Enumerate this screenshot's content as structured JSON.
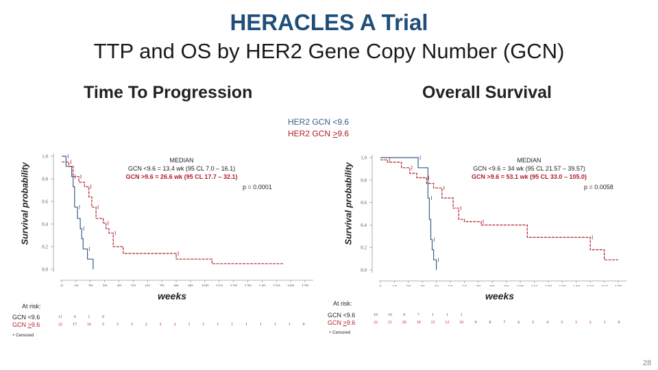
{
  "header": {
    "title": "HERACLES A Trial",
    "subtitle": "TTP and OS by HER2 Gene Copy Number (GCN)"
  },
  "legend": {
    "line1": "HER2 GCN <9.6",
    "line2_prefix": "HER2 GCN ",
    "line2_sym": ">",
    "line2_val": "9.6"
  },
  "page_number": "28",
  "colors": {
    "low": "#3b5a86",
    "high": "#b01c28",
    "title": "#1f4e79"
  },
  "chart_data": [
    {
      "type": "line",
      "step": true,
      "title": "Time To Progression",
      "xlabel": "weeks",
      "ylabel": "Survival probability",
      "xlim": [
        0,
        170
      ],
      "ylim": [
        0,
        1
      ],
      "xticks": [
        0,
        10,
        20,
        30,
        40,
        50,
        60,
        70,
        80,
        90,
        100,
        110,
        120,
        130,
        140,
        150,
        160,
        170
      ],
      "yticks": [
        "0.0",
        "0.2",
        "0.4",
        "0.6",
        "0.8",
        "1.0"
      ],
      "median_title": "MEDIAN",
      "median_low": "GCN <9.6 = 13.4 wk (95 CL 7.0 – 16.1)",
      "median_high": "GCN >9.6 = 26.6 wk (95 CL 17.7 – 32.1)",
      "pvalue": "p = 0.0001",
      "series": [
        {
          "name": "HER2 GCN <9.6",
          "points": [
            [
              0,
              1.0
            ],
            [
              3,
              1.0
            ],
            [
              3,
              0.91
            ],
            [
              7,
              0.91
            ],
            [
              7,
              0.82
            ],
            [
              8,
              0.82
            ],
            [
              8,
              0.73
            ],
            [
              9,
              0.73
            ],
            [
              9,
              0.55
            ],
            [
              11,
              0.55
            ],
            [
              11,
              0.45
            ],
            [
              13,
              0.45
            ],
            [
              13,
              0.36
            ],
            [
              14,
              0.36
            ],
            [
              14,
              0.27
            ],
            [
              15,
              0.27
            ],
            [
              15,
              0.18
            ],
            [
              18,
              0.18
            ],
            [
              18,
              0.09
            ],
            [
              22,
              0.09
            ],
            [
              22,
              0.0
            ]
          ]
        },
        {
          "name": "HER2 GCN >9.6",
          "points": [
            [
              0,
              0.95
            ],
            [
              5,
              0.95
            ],
            [
              5,
              0.91
            ],
            [
              8,
              0.91
            ],
            [
              8,
              0.82
            ],
            [
              12,
              0.82
            ],
            [
              12,
              0.77
            ],
            [
              16,
              0.77
            ],
            [
              16,
              0.73
            ],
            [
              19,
              0.73
            ],
            [
              19,
              0.64
            ],
            [
              21,
              0.64
            ],
            [
              21,
              0.55
            ],
            [
              24,
              0.55
            ],
            [
              24,
              0.45
            ],
            [
              29,
              0.45
            ],
            [
              29,
              0.41
            ],
            [
              31,
              0.41
            ],
            [
              31,
              0.36
            ],
            [
              33,
              0.36
            ],
            [
              33,
              0.32
            ],
            [
              36,
              0.32
            ],
            [
              36,
              0.2
            ],
            [
              43,
              0.2
            ],
            [
              43,
              0.14
            ],
            [
              80,
              0.14
            ],
            [
              80,
              0.09
            ],
            [
              105,
              0.09
            ],
            [
              105,
              0.05
            ],
            [
              155,
              0.05
            ]
          ]
        }
      ],
      "at_risk": {
        "label": "At risk:",
        "low_label": "GCN <9.6",
        "high_label_prefix": "GCN ",
        "high_label_sym": ">",
        "high_label_val": "9.6",
        "low_values": [
          "11",
          "4",
          "1",
          "0",
          "",
          "",
          "",
          "",
          "",
          "",
          "",
          "",
          "",
          "",
          "",
          "",
          "",
          ""
        ],
        "high_values": [
          "22",
          "17",
          "16",
          "5",
          "3",
          "3",
          "2",
          "2",
          "2",
          "1",
          "1",
          "1",
          "1",
          "1",
          "1",
          "1",
          "1",
          "0"
        ]
      },
      "censored_label": "+ Censored"
    },
    {
      "type": "line",
      "step": true,
      "title": "Overall Survival",
      "xlabel": "weeks",
      "ylabel": "Survival probability",
      "xlim": [
        0,
        170
      ],
      "ylim": [
        0,
        1
      ],
      "xticks": [
        0,
        10,
        20,
        30,
        40,
        50,
        60,
        70,
        80,
        90,
        100,
        110,
        120,
        130,
        140,
        150,
        160,
        170
      ],
      "yticks": [
        "0.0",
        "0.2",
        "0.4",
        "0.6",
        "0.8",
        "1.0"
      ],
      "median_title": "MEDIAN",
      "median_low": "GCN <9.6 =  34   wk (95 CL 21.57 – 39.57)",
      "median_high": "GCN >9.6 = 53.1 wk (95 CL 33.0 –  105.0)",
      "pvalue": "p = 0.0058",
      "series": [
        {
          "name": "HER2 GCN <9.6",
          "points": [
            [
              0,
              1.0
            ],
            [
              27,
              1.0
            ],
            [
              27,
              0.91
            ],
            [
              34,
              0.91
            ],
            [
              34,
              0.64
            ],
            [
              35,
              0.64
            ],
            [
              35,
              0.45
            ],
            [
              36,
              0.45
            ],
            [
              36,
              0.27
            ],
            [
              37,
              0.27
            ],
            [
              37,
              0.18
            ],
            [
              38,
              0.18
            ],
            [
              38,
              0.09
            ],
            [
              40,
              0.09
            ],
            [
              40,
              0.0
            ]
          ]
        },
        {
          "name": "HER2 GCN >9.6",
          "points": [
            [
              0,
              0.98
            ],
            [
              5,
              0.98
            ],
            [
              5,
              0.96
            ],
            [
              15,
              0.96
            ],
            [
              15,
              0.91
            ],
            [
              21,
              0.91
            ],
            [
              21,
              0.86
            ],
            [
              26,
              0.86
            ],
            [
              26,
              0.82
            ],
            [
              33,
              0.82
            ],
            [
              33,
              0.77
            ],
            [
              38,
              0.77
            ],
            [
              38,
              0.73
            ],
            [
              44,
              0.73
            ],
            [
              44,
              0.64
            ],
            [
              52,
              0.64
            ],
            [
              52,
              0.55
            ],
            [
              56,
              0.55
            ],
            [
              56,
              0.45
            ],
            [
              60,
              0.45
            ],
            [
              60,
              0.43
            ],
            [
              72,
              0.43
            ],
            [
              72,
              0.4
            ],
            [
              105,
              0.4
            ],
            [
              105,
              0.29
            ],
            [
              150,
              0.29
            ],
            [
              150,
              0.18
            ],
            [
              160,
              0.18
            ],
            [
              160,
              0.09
            ],
            [
              170,
              0.09
            ]
          ]
        }
      ],
      "at_risk": {
        "label": "At risk:",
        "low_label": "GCN <9.6",
        "high_label_prefix": "GCN ",
        "high_label_sym": ">",
        "high_label_val": "9.6",
        "low_values": [
          "10",
          "10",
          "9",
          "7",
          "1",
          "1",
          "1",
          "",
          "",
          "",
          "",
          "",
          "",
          "",
          "",
          "",
          "",
          ""
        ],
        "high_values": [
          "22",
          "21",
          "20",
          "19",
          "15",
          "12",
          "10",
          "9",
          "8",
          "7",
          "6",
          "5",
          "4",
          "3",
          "3",
          "2",
          "1",
          "0"
        ]
      },
      "censored_label": "+ Censored"
    }
  ]
}
